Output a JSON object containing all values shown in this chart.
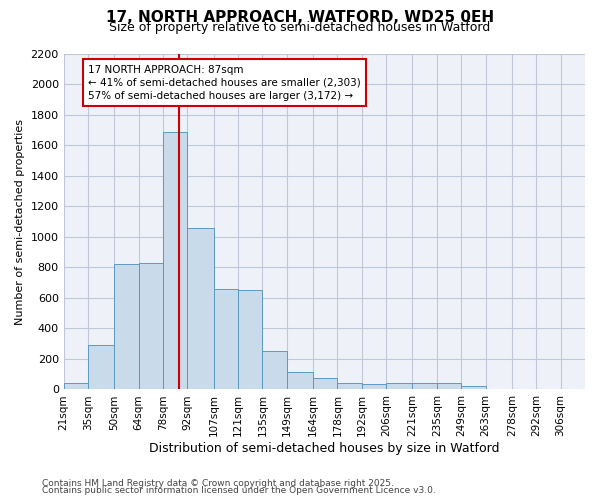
{
  "title1": "17, NORTH APPROACH, WATFORD, WD25 0EH",
  "title2": "Size of property relative to semi-detached houses in Watford",
  "xlabel": "Distribution of semi-detached houses by size in Watford",
  "ylabel": "Number of semi-detached properties",
  "bin_labels": [
    "21sqm",
    "35sqm",
    "50sqm",
    "64sqm",
    "78sqm",
    "92sqm",
    "107sqm",
    "121sqm",
    "135sqm",
    "149sqm",
    "164sqm",
    "178sqm",
    "192sqm",
    "206sqm",
    "221sqm",
    "235sqm",
    "249sqm",
    "263sqm",
    "278sqm",
    "292sqm",
    "306sqm"
  ],
  "bin_edges": [
    21,
    35,
    50,
    64,
    78,
    92,
    107,
    121,
    135,
    149,
    164,
    178,
    192,
    206,
    221,
    235,
    249,
    263,
    278,
    292,
    306
  ],
  "bar_heights": [
    40,
    290,
    820,
    830,
    1690,
    1060,
    660,
    650,
    255,
    115,
    75,
    40,
    35,
    40,
    40,
    40,
    20,
    5,
    5,
    5,
    5
  ],
  "bar_color": "#c9daea",
  "bar_edge_color": "#5a9abf",
  "grid_color": "#c0c8d8",
  "bg_color": "#eef2f8",
  "property_sqm": 87,
  "vline_color": "#cc0000",
  "annotation_text": "17 NORTH APPROACH: 87sqm\n← 41% of semi-detached houses are smaller (2,303)\n57% of semi-detached houses are larger (3,172) →",
  "annotation_box_color": "#cc0000",
  "ylim": [
    0,
    2200
  ],
  "yticks": [
    0,
    200,
    400,
    600,
    800,
    1000,
    1200,
    1400,
    1600,
    1800,
    2000,
    2200
  ],
  "footnote1": "Contains HM Land Registry data © Crown copyright and database right 2025.",
  "footnote2": "Contains public sector information licensed under the Open Government Licence v3.0."
}
